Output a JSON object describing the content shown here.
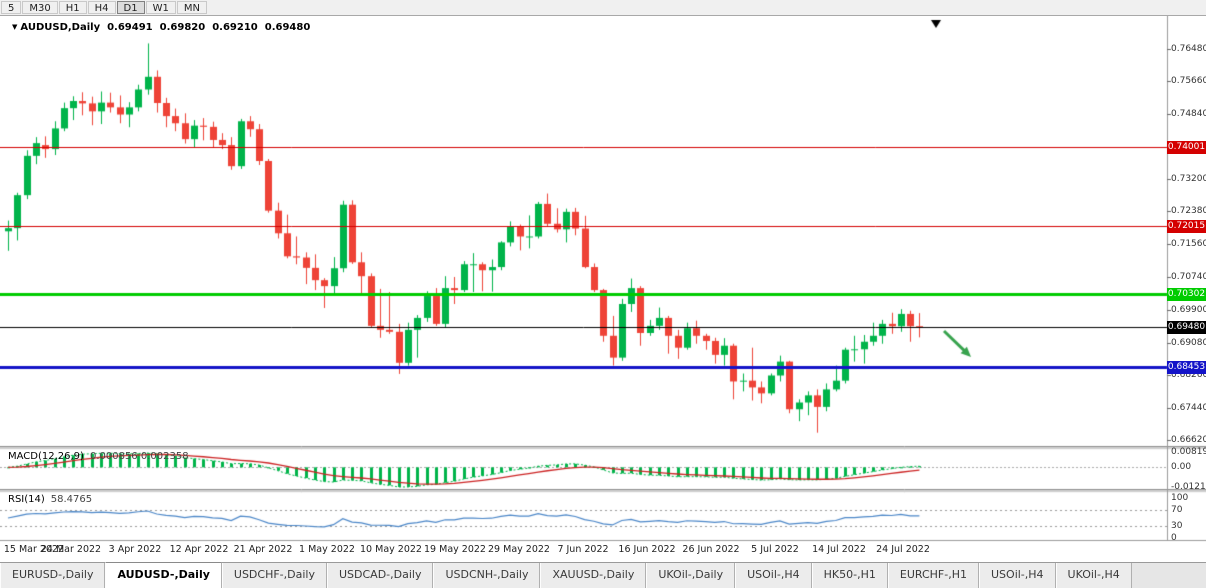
{
  "toolbar": {
    "timeframes": [
      {
        "label": "5",
        "active": false
      },
      {
        "label": "M30",
        "active": false
      },
      {
        "label": "H1",
        "active": false
      },
      {
        "label": "H4",
        "active": false
      },
      {
        "label": "D1",
        "active": true
      },
      {
        "label": "W1",
        "active": false
      },
      {
        "label": "MN",
        "active": false
      }
    ]
  },
  "chart_header": {
    "symbol": "AUDUSD,Daily",
    "open": "0.69491",
    "high": "0.69820",
    "low": "0.69210",
    "close": "0.69480"
  },
  "chart_data": {
    "type": "candlestick",
    "symbol": "AUDUSD",
    "timeframe": "Daily",
    "price_axis_ticks": [
      "0.76480",
      "0.75660",
      "0.74840",
      "0.74020",
      "0.73200",
      "0.72380",
      "0.71560",
      "0.70740",
      "0.69900",
      "0.69080",
      "0.68260",
      "0.67440",
      "0.66620"
    ],
    "date_labels": [
      "15 Mar 2022",
      "24 Mar 2022",
      "3 Apr 2022",
      "12 Apr 2022",
      "21 Apr 2022",
      "1 May 2022",
      "10 May 2022",
      "19 May 2022",
      "29 May 2022",
      "7 Jun 2022",
      "16 Jun 2022",
      "26 Jun 2022",
      "5 Jul 2022",
      "14 Jul 2022",
      "24 Jul 2022"
    ],
    "levels": [
      {
        "name": "resistance-1",
        "price": 0.74001,
        "label": "0.74001",
        "color": "#d40000",
        "width": 1
      },
      {
        "name": "resistance-2",
        "price": 0.72015,
        "label": "0.72015",
        "color": "#d40000",
        "width": 1
      },
      {
        "name": "support-green",
        "price": 0.70302,
        "label": "0.70302",
        "color": "#00cc00",
        "width": 3
      },
      {
        "name": "support-blue",
        "price": 0.68453,
        "label": "0.68453",
        "color": "#1414c8",
        "width": 3
      }
    ],
    "current_price": {
      "price": 0.6948,
      "label": "0.69480",
      "color": "#000000"
    },
    "colors": {
      "up": "#00b44a",
      "down": "#ee4337",
      "arrow": "#38a34e",
      "rsi_line": "#4a86c8",
      "macd_hist": "#00b44a",
      "macd_signal": "#cc2222"
    },
    "indicators": {
      "macd": {
        "label": "MACD(12,26,9)",
        "values": "0.000856 0.002358",
        "axis_labels": [
          "0.00819",
          "0.00",
          "-0.0121"
        ]
      },
      "rsi": {
        "label": "RSI(14)",
        "value": "58.4765",
        "axis_labels": [
          "100",
          "70",
          "30",
          "0"
        ],
        "guide_levels": [
          70,
          30
        ]
      }
    },
    "ohlc": [
      [
        0.7188,
        0.7215,
        0.7139,
        0.7196
      ],
      [
        0.7196,
        0.7285,
        0.7165,
        0.7279
      ],
      [
        0.7279,
        0.7392,
        0.7269,
        0.7378
      ],
      [
        0.7378,
        0.7425,
        0.7357,
        0.741
      ],
      [
        0.7405,
        0.7427,
        0.7373,
        0.7395
      ],
      [
        0.7395,
        0.7465,
        0.738,
        0.7447
      ],
      [
        0.7447,
        0.7512,
        0.744,
        0.7498
      ],
      [
        0.7498,
        0.7528,
        0.7468,
        0.7516
      ],
      [
        0.7516,
        0.7538,
        0.748,
        0.751
      ],
      [
        0.751,
        0.7527,
        0.7455,
        0.749
      ],
      [
        0.749,
        0.754,
        0.7458,
        0.7512
      ],
      [
        0.7512,
        0.7537,
        0.7487,
        0.75
      ],
      [
        0.75,
        0.753,
        0.746,
        0.7482
      ],
      [
        0.7482,
        0.7513,
        0.745,
        0.75
      ],
      [
        0.75,
        0.7557,
        0.749,
        0.7545
      ],
      [
        0.7545,
        0.7661,
        0.7532,
        0.7577
      ],
      [
        0.7577,
        0.7593,
        0.7487,
        0.7511
      ],
      [
        0.7511,
        0.7524,
        0.745,
        0.7478
      ],
      [
        0.7478,
        0.7497,
        0.744,
        0.746
      ],
      [
        0.746,
        0.7485,
        0.7409,
        0.742
      ],
      [
        0.742,
        0.7468,
        0.74,
        0.7454
      ],
      [
        0.7454,
        0.7473,
        0.7417,
        0.7451
      ],
      [
        0.7451,
        0.7464,
        0.7398,
        0.7418
      ],
      [
        0.7418,
        0.7435,
        0.7395,
        0.7405
      ],
      [
        0.7405,
        0.7425,
        0.7343,
        0.7352
      ],
      [
        0.7352,
        0.7471,
        0.7345,
        0.7465
      ],
      [
        0.7465,
        0.7478,
        0.7426,
        0.7445
      ],
      [
        0.7445,
        0.7458,
        0.7355,
        0.7365
      ],
      [
        0.7365,
        0.737,
        0.7235,
        0.724
      ],
      [
        0.724,
        0.726,
        0.717,
        0.7183
      ],
      [
        0.7183,
        0.723,
        0.712,
        0.7125
      ],
      [
        0.7125,
        0.7175,
        0.7105,
        0.7122
      ],
      [
        0.7122,
        0.7135,
        0.7055,
        0.7096
      ],
      [
        0.7096,
        0.713,
        0.704,
        0.7065
      ],
      [
        0.7065,
        0.707,
        0.6995,
        0.705
      ],
      [
        0.705,
        0.7123,
        0.7029,
        0.7095
      ],
      [
        0.7095,
        0.7265,
        0.7085,
        0.7255
      ],
      [
        0.7255,
        0.7266,
        0.7106,
        0.711
      ],
      [
        0.711,
        0.7135,
        0.703,
        0.7075
      ],
      [
        0.7075,
        0.7082,
        0.6945,
        0.695
      ],
      [
        0.695,
        0.7043,
        0.692,
        0.694
      ],
      [
        0.694,
        0.7035,
        0.693,
        0.6935
      ],
      [
        0.6935,
        0.6955,
        0.6829,
        0.6857
      ],
      [
        0.6857,
        0.6958,
        0.685,
        0.694
      ],
      [
        0.694,
        0.6977,
        0.687,
        0.697
      ],
      [
        0.697,
        0.7037,
        0.696,
        0.7025
      ],
      [
        0.7025,
        0.7045,
        0.695,
        0.6955
      ],
      [
        0.6955,
        0.7075,
        0.6945,
        0.7045
      ],
      [
        0.7045,
        0.7073,
        0.7005,
        0.704
      ],
      [
        0.704,
        0.7113,
        0.7035,
        0.7105
      ],
      [
        0.7105,
        0.7133,
        0.7035,
        0.7105
      ],
      [
        0.7105,
        0.711,
        0.7037,
        0.709
      ],
      [
        0.709,
        0.7117,
        0.7036,
        0.7098
      ],
      [
        0.7098,
        0.7163,
        0.709,
        0.716
      ],
      [
        0.716,
        0.7213,
        0.715,
        0.72
      ],
      [
        0.72,
        0.7205,
        0.714,
        0.7175
      ],
      [
        0.7175,
        0.7228,
        0.7145,
        0.7175
      ],
      [
        0.7175,
        0.7262,
        0.717,
        0.7257
      ],
      [
        0.7257,
        0.7283,
        0.72,
        0.7207
      ],
      [
        0.7207,
        0.7246,
        0.7185,
        0.7193
      ],
      [
        0.7193,
        0.7245,
        0.716,
        0.7237
      ],
      [
        0.7237,
        0.7247,
        0.7178,
        0.7195
      ],
      [
        0.7195,
        0.7227,
        0.7095,
        0.7098
      ],
      [
        0.7098,
        0.7107,
        0.7035,
        0.704
      ],
      [
        0.704,
        0.7043,
        0.691,
        0.6925
      ],
      [
        0.6925,
        0.6975,
        0.685,
        0.687
      ],
      [
        0.687,
        0.7018,
        0.6862,
        0.7005
      ],
      [
        0.7005,
        0.7069,
        0.6985,
        0.7045
      ],
      [
        0.7045,
        0.705,
        0.69,
        0.6932
      ],
      [
        0.6932,
        0.6965,
        0.6925,
        0.695
      ],
      [
        0.695,
        0.6996,
        0.694,
        0.697
      ],
      [
        0.697,
        0.6975,
        0.688,
        0.6925
      ],
      [
        0.6925,
        0.694,
        0.6867,
        0.6895
      ],
      [
        0.6895,
        0.6958,
        0.689,
        0.6944
      ],
      [
        0.6944,
        0.6963,
        0.6905,
        0.6925
      ],
      [
        0.6925,
        0.693,
        0.689,
        0.6912
      ],
      [
        0.6912,
        0.692,
        0.6855,
        0.6877
      ],
      [
        0.6877,
        0.6919,
        0.685,
        0.69
      ],
      [
        0.69,
        0.6905,
        0.6765,
        0.681
      ],
      [
        0.681,
        0.683,
        0.6785,
        0.6812
      ],
      [
        0.6812,
        0.6895,
        0.6762,
        0.6795
      ],
      [
        0.6795,
        0.681,
        0.6755,
        0.678
      ],
      [
        0.678,
        0.683,
        0.6775,
        0.6825
      ],
      [
        0.6825,
        0.6875,
        0.681,
        0.686
      ],
      [
        0.686,
        0.6862,
        0.673,
        0.674
      ],
      [
        0.674,
        0.6765,
        0.671,
        0.6757
      ],
      [
        0.6757,
        0.6785,
        0.6725,
        0.6775
      ],
      [
        0.6775,
        0.679,
        0.6681,
        0.6746
      ],
      [
        0.6746,
        0.6805,
        0.6735,
        0.679
      ],
      [
        0.679,
        0.685,
        0.6785,
        0.6812
      ],
      [
        0.6812,
        0.6895,
        0.6805,
        0.689
      ],
      [
        0.689,
        0.6925,
        0.686,
        0.6891
      ],
      [
        0.6891,
        0.6927,
        0.6855,
        0.691
      ],
      [
        0.691,
        0.6958,
        0.69,
        0.6925
      ],
      [
        0.6925,
        0.6965,
        0.6905,
        0.6955
      ],
      [
        0.6955,
        0.6983,
        0.693,
        0.6949
      ],
      [
        0.6949,
        0.6992,
        0.6935,
        0.698
      ],
      [
        0.698,
        0.6988,
        0.691,
        0.6949
      ],
      [
        0.69491,
        0.6982,
        0.6921,
        0.6948
      ]
    ]
  },
  "tabs": [
    {
      "label": "EURUSD-,Daily",
      "active": false
    },
    {
      "label": "AUDUSD-,Daily",
      "active": true
    },
    {
      "label": "USDCHF-,Daily",
      "active": false
    },
    {
      "label": "USDCAD-,Daily",
      "active": false
    },
    {
      "label": "USDCNH-,Daily",
      "active": false
    },
    {
      "label": "XAUUSD-,Daily",
      "active": false
    },
    {
      "label": "UKOil-,Daily",
      "active": false
    },
    {
      "label": "USOil-,H4",
      "active": false
    },
    {
      "label": "HK50-,H1",
      "active": false
    },
    {
      "label": "EURCHF-,H1",
      "active": false
    },
    {
      "label": "USOil-,H4",
      "active": false
    },
    {
      "label": "UKOil-,H4",
      "active": false
    }
  ]
}
